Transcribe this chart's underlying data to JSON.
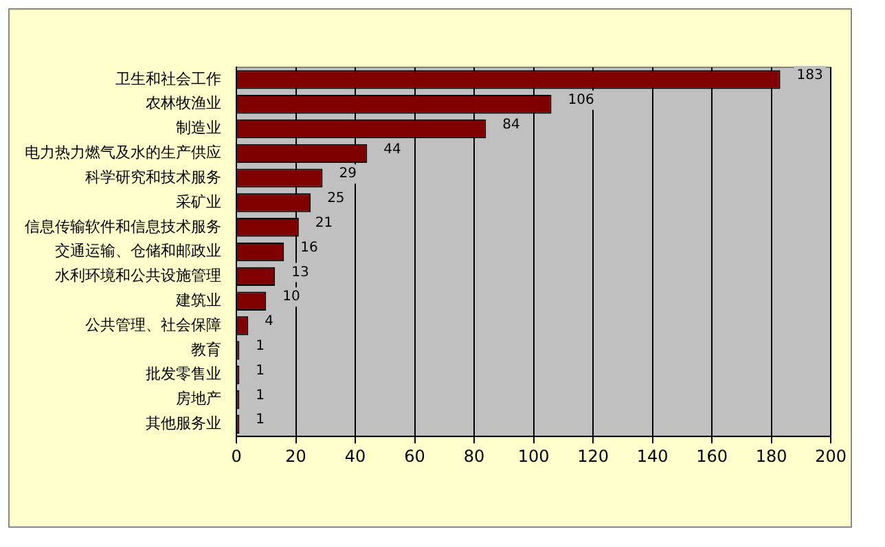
{
  "chart_data": {
    "type": "bar",
    "orientation": "horizontal",
    "categories": [
      "卫生和社会工作",
      "农林牧渔业",
      "制造业",
      "电力热力燃气及水的生产供应",
      "科学研究和技术服务",
      "采矿业",
      "信息传输软件和信息技术服务",
      "交通运输、仓储和邮政业",
      "水利环境和公共设施管理",
      "建筑业",
      "公共管理、社会保障",
      "教育",
      "批发零售业",
      "房地产",
      "其他服务业"
    ],
    "values": [
      183,
      106,
      84,
      44,
      29,
      25,
      21,
      16,
      13,
      10,
      4,
      1,
      1,
      1,
      1
    ],
    "color": "#800000",
    "xlim": [
      0,
      200
    ],
    "xticks": [
      0,
      20,
      40,
      60,
      80,
      100,
      120,
      140,
      160,
      180,
      200
    ],
    "grid": "x",
    "data_labels": true,
    "legend": false
  }
}
